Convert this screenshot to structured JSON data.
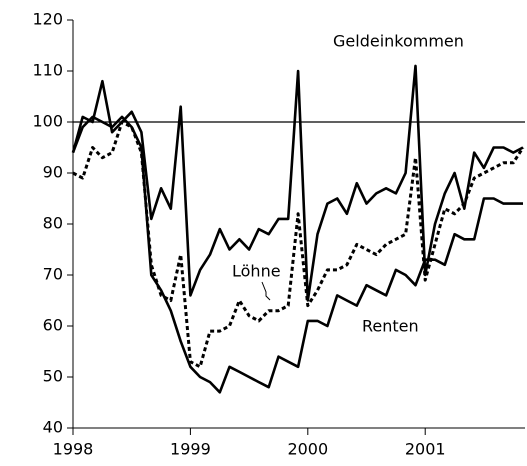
{
  "chart_data": {
    "type": "line",
    "x": [
      1998,
      1998.083,
      1998.167,
      1998.25,
      1998.333,
      1998.417,
      1998.5,
      1998.583,
      1998.667,
      1998.75,
      1998.833,
      1998.917,
      1999,
      1999.083,
      1999.167,
      1999.25,
      1999.333,
      1999.417,
      1999.5,
      1999.583,
      1999.667,
      1999.75,
      1999.833,
      1999.917,
      2000,
      2000.083,
      2000.167,
      2000.25,
      2000.333,
      2000.417,
      2000.5,
      2000.583,
      2000.667,
      2000.75,
      2000.833,
      2000.917,
      2001,
      2001.083,
      2001.167,
      2001.25,
      2001.333,
      2001.417,
      2001.5,
      2001.583,
      2001.667,
      2001.75,
      2001.833
    ],
    "series": [
      {
        "name": "Geldeinkommen",
        "color": "#000000",
        "style": "solid",
        "values": [
          94,
          101,
          100,
          108,
          98,
          100,
          102,
          98,
          81,
          87,
          83,
          103,
          66,
          71,
          74,
          79,
          75,
          77,
          75,
          79,
          78,
          81,
          81,
          110,
          65,
          78,
          84,
          85,
          82,
          88,
          84,
          86,
          87,
          86,
          90,
          111,
          70,
          80,
          86,
          90,
          83,
          94,
          91,
          95,
          95,
          94,
          95
        ]
      },
      {
        "name": "Löhne",
        "color": "#000000",
        "style": "dotted",
        "values": [
          90,
          89,
          95,
          93,
          94,
          100,
          99,
          94,
          72,
          66,
          65,
          74,
          53,
          52,
          59,
          59,
          60,
          65,
          62,
          61,
          63,
          63,
          64,
          82,
          64,
          67,
          71,
          71,
          72,
          76,
          75,
          74,
          76,
          77,
          78,
          93,
          69,
          76,
          83,
          82,
          84,
          89,
          90,
          91,
          92,
          92,
          95
        ]
      },
      {
        "name": "Renten",
        "color": "#000000",
        "style": "solid",
        "values": [
          94,
          99,
          101,
          100,
          99,
          101,
          99,
          95,
          70,
          67,
          63,
          57,
          52,
          50,
          49,
          47,
          52,
          51,
          50,
          49,
          48,
          54,
          53,
          52,
          61,
          61,
          60,
          66,
          65,
          64,
          68,
          67,
          66,
          71,
          70,
          68,
          73,
          73,
          72,
          78,
          77,
          77,
          85,
          85,
          84,
          84,
          84
        ]
      }
    ],
    "xlim": [
      1998,
      2001.85
    ],
    "xticks": [
      1998,
      1999,
      2000,
      2001
    ],
    "ylim": [
      40,
      120
    ],
    "yticks": [
      40,
      50,
      60,
      70,
      80,
      90,
      100,
      110,
      120
    ],
    "reference_line": 100
  }
}
